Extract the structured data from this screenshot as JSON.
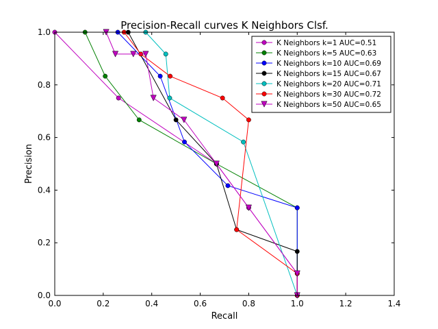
{
  "chart_data": {
    "type": "line",
    "title": "Precision-Recall curves K Neighbors Clsf.",
    "xlabel": "Recall",
    "ylabel": "Precision",
    "xlim": [
      0.0,
      1.4
    ],
    "ylim": [
      0.0,
      1.0
    ],
    "xticks": [
      "0.0",
      "0.2",
      "0.4",
      "0.6",
      "0.8",
      "1.0",
      "1.2",
      "1.4"
    ],
    "yticks": [
      "0.0",
      "0.2",
      "0.4",
      "0.6",
      "0.8",
      "1.0"
    ],
    "grid": false,
    "legend_position": "top-right",
    "series": [
      {
        "name": "K Neighbors k=1 AUC=0.51",
        "color": "#bf00bf",
        "marker": "circle",
        "points": [
          [
            0.0,
            1.0
          ],
          [
            0.263,
            0.75
          ],
          [
            0.667,
            0.5
          ],
          [
            0.8,
            0.333
          ],
          [
            1.0,
            0.083
          ],
          [
            1.0,
            0.0
          ]
        ]
      },
      {
        "name": "K Neighbors k=5 AUC=0.63",
        "color": "#008000",
        "marker": "circle",
        "points": [
          [
            0.125,
            1.0
          ],
          [
            0.208,
            0.833
          ],
          [
            0.348,
            0.667
          ],
          [
            0.667,
            0.5
          ],
          [
            1.0,
            0.333
          ],
          [
            1.0,
            0.0
          ]
        ]
      },
      {
        "name": "K Neighbors k=10 AUC=0.69",
        "color": "#0000ff",
        "marker": "circle",
        "points": [
          [
            0.26,
            1.0
          ],
          [
            0.435,
            0.833
          ],
          [
            0.535,
            0.583
          ],
          [
            0.714,
            0.417
          ],
          [
            1.0,
            0.333
          ],
          [
            1.0,
            0.0
          ]
        ]
      },
      {
        "name": "K Neighbors k=15 AUC=0.67",
        "color": "#000000",
        "marker": "circle",
        "points": [
          [
            0.303,
            1.0
          ],
          [
            0.5,
            0.667
          ],
          [
            0.667,
            0.5
          ],
          [
            0.75,
            0.25
          ],
          [
            1.0,
            0.167
          ],
          [
            1.0,
            0.0
          ]
        ]
      },
      {
        "name": "K Neighbors k=20 AUC=0.71",
        "color": "#00bfbf",
        "marker": "circle",
        "points": [
          [
            0.375,
            1.0
          ],
          [
            0.458,
            0.917
          ],
          [
            0.474,
            0.75
          ],
          [
            0.778,
            0.583
          ],
          [
            1.0,
            0.0
          ]
        ]
      },
      {
        "name": "K Neighbors k=30 AUC=0.72",
        "color": "#ff0000",
        "marker": "circle",
        "points": [
          [
            0.286,
            1.0
          ],
          [
            0.355,
            0.917
          ],
          [
            0.476,
            0.833
          ],
          [
            0.692,
            0.75
          ],
          [
            0.8,
            0.667
          ],
          [
            0.75,
            0.25
          ],
          [
            1.0,
            0.083
          ],
          [
            1.0,
            0.0
          ]
        ]
      },
      {
        "name": "K Neighbors k=50 AUC=0.65",
        "color": "#bf00bf",
        "marker": "triangle-down",
        "points": [
          [
            0.212,
            1.0
          ],
          [
            0.25,
            0.917
          ],
          [
            0.324,
            0.917
          ],
          [
            0.375,
            0.917
          ],
          [
            0.407,
            0.75
          ],
          [
            0.533,
            0.667
          ],
          [
            0.667,
            0.5
          ],
          [
            0.8,
            0.333
          ],
          [
            1.0,
            0.083
          ],
          [
            1.0,
            0.0
          ]
        ]
      }
    ]
  }
}
